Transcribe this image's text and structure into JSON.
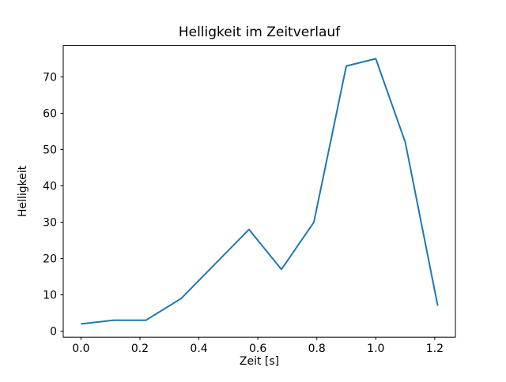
{
  "figure": {
    "background": "#ffffff"
  },
  "chart_data": {
    "type": "line",
    "title": "Helligkeit im Zeitverlauf",
    "xlabel": "Zeit [s]",
    "ylabel": "Helligkeit",
    "x": [
      0.0,
      0.11,
      0.22,
      0.34,
      0.57,
      0.68,
      0.79,
      0.9,
      1.0,
      1.1,
      1.21
    ],
    "y": [
      2,
      3,
      3,
      9,
      28,
      17,
      30,
      73,
      75,
      52,
      7
    ],
    "xticks": [
      0.0,
      0.2,
      0.4,
      0.6,
      0.8,
      1.0,
      1.2
    ],
    "xtick_labels": [
      "0.0",
      "0.2",
      "0.4",
      "0.6",
      "0.8",
      "1.0",
      "1.2"
    ],
    "yticks": [
      0,
      10,
      20,
      30,
      40,
      50,
      60,
      70
    ],
    "ytick_labels": [
      "0",
      "10",
      "20",
      "30",
      "40",
      "50",
      "60",
      "70"
    ],
    "xlim": [
      -0.06,
      1.27
    ],
    "ylim": [
      -1.65,
      78.65
    ],
    "line_color": "#1f77b4",
    "axis_color": "#000000",
    "grid": false,
    "legend": null,
    "markers": false
  }
}
